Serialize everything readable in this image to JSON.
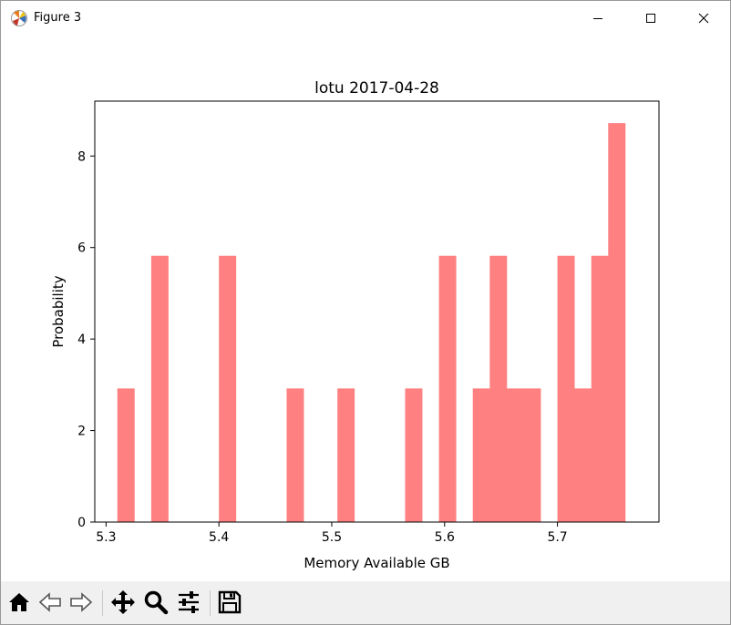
{
  "window": {
    "title": "Figure 3"
  },
  "toolbar": {
    "buttons": [
      {
        "name": "home-icon"
      },
      {
        "name": "back-icon"
      },
      {
        "name": "forward-icon"
      },
      {
        "name": "pan-icon"
      },
      {
        "name": "zoom-icon"
      },
      {
        "name": "configure-subplots-icon"
      },
      {
        "name": "save-icon"
      }
    ]
  },
  "colors": {
    "bar": "#ff8080",
    "axes": "#000000"
  },
  "chart_data": {
    "type": "bar",
    "title": "lotu 2017-04-28",
    "xlabel": "Memory Available GB",
    "ylabel": "Probability",
    "xlim": [
      5.29,
      5.79
    ],
    "ylim": [
      0,
      9.2
    ],
    "xticks": [
      5.3,
      5.4,
      5.5,
      5.6,
      5.7
    ],
    "xtick_labels": [
      "5.3",
      "5.4",
      "5.5",
      "5.6",
      "5.7"
    ],
    "yticks": [
      0,
      2,
      4,
      6,
      8
    ],
    "ytick_labels": [
      "0",
      "2",
      "4",
      "6",
      "8"
    ],
    "bin_width": 0.015,
    "bins": [
      {
        "x0": 5.31,
        "value": 2.92
      },
      {
        "x0": 5.34,
        "value": 5.82
      },
      {
        "x0": 5.4,
        "value": 5.82
      },
      {
        "x0": 5.46,
        "value": 2.92
      },
      {
        "x0": 5.505,
        "value": 2.92
      },
      {
        "x0": 5.565,
        "value": 2.92
      },
      {
        "x0": 5.595,
        "value": 5.82
      },
      {
        "x0": 5.625,
        "value": 2.92
      },
      {
        "x0": 5.64,
        "value": 5.82
      },
      {
        "x0": 5.655,
        "value": 2.92
      },
      {
        "x0": 5.67,
        "value": 2.92
      },
      {
        "x0": 5.7,
        "value": 5.82
      },
      {
        "x0": 5.715,
        "value": 2.92
      },
      {
        "x0": 5.73,
        "value": 5.82
      },
      {
        "x0": 5.745,
        "value": 8.72
      }
    ],
    "grid": false,
    "legend": "none"
  }
}
